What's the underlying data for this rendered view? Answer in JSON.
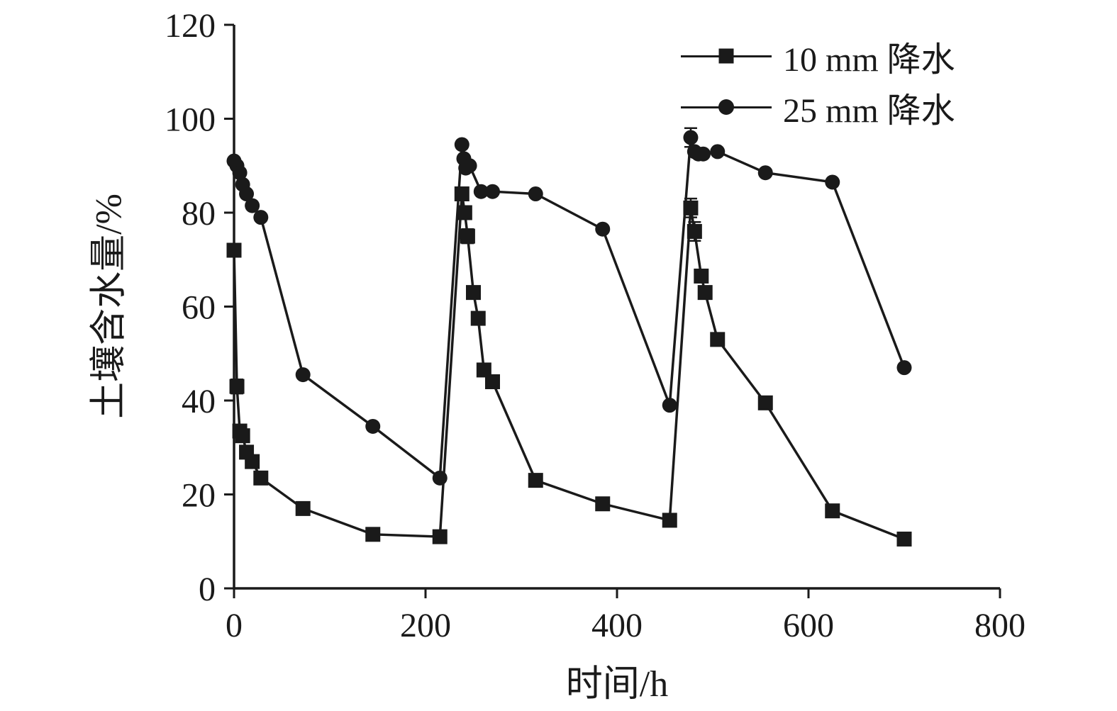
{
  "figure": {
    "background": "#ffffff",
    "ink_color": "#1a1a1a"
  },
  "chart_data": {
    "type": "line",
    "title": "",
    "xlabel": "时间/h",
    "ylabel": "土壤含水量/%",
    "xlim": [
      0,
      800
    ],
    "ylim": [
      0,
      120
    ],
    "xticks": [
      0,
      200,
      400,
      600,
      800
    ],
    "yticks": [
      0,
      20,
      40,
      60,
      80,
      100,
      120
    ],
    "grid": false,
    "legend_position": "top-right",
    "series": [
      {
        "name": "10 mm 降水",
        "marker": "square",
        "color": "#1a1a1a",
        "points": [
          [
            0,
            72
          ],
          [
            3,
            43,
            1.5
          ],
          [
            6,
            33.5
          ],
          [
            9,
            32.5
          ],
          [
            13,
            29
          ],
          [
            19,
            27
          ],
          [
            28,
            23.5
          ],
          [
            72,
            17
          ],
          [
            145,
            11.5
          ],
          [
            215,
            11
          ],
          [
            238,
            84
          ],
          [
            241,
            80
          ],
          [
            244,
            75,
            1.5
          ],
          [
            250,
            63
          ],
          [
            255,
            57.5
          ],
          [
            261,
            46.5
          ],
          [
            270,
            44
          ],
          [
            315,
            23
          ],
          [
            385,
            18
          ],
          [
            455,
            14.5
          ],
          [
            477,
            81,
            2
          ],
          [
            481,
            76,
            2
          ],
          [
            488,
            66.5
          ],
          [
            492,
            63
          ],
          [
            505,
            53
          ],
          [
            555,
            39.5
          ],
          [
            625,
            16.5
          ],
          [
            700,
            10.5
          ]
        ]
      },
      {
        "name": "25 mm 降水",
        "marker": "circle",
        "color": "#1a1a1a",
        "points": [
          [
            0,
            91
          ],
          [
            3,
            90
          ],
          [
            6,
            88.5
          ],
          [
            9,
            86
          ],
          [
            13,
            84
          ],
          [
            19,
            81.5
          ],
          [
            28,
            79
          ],
          [
            72,
            45.5
          ],
          [
            145,
            34.5
          ],
          [
            215,
            23.5
          ],
          [
            238,
            94.5
          ],
          [
            240,
            91.5
          ],
          [
            242,
            89.5
          ],
          [
            246,
            90
          ],
          [
            258,
            84.5
          ],
          [
            270,
            84.5
          ],
          [
            315,
            84
          ],
          [
            385,
            76.5
          ],
          [
            455,
            39
          ],
          [
            477,
            96,
            2
          ],
          [
            481,
            93
          ],
          [
            485,
            92.5
          ],
          [
            490,
            92.5
          ],
          [
            505,
            93
          ],
          [
            555,
            88.5
          ],
          [
            625,
            86.5
          ],
          [
            700,
            47
          ]
        ]
      }
    ]
  }
}
